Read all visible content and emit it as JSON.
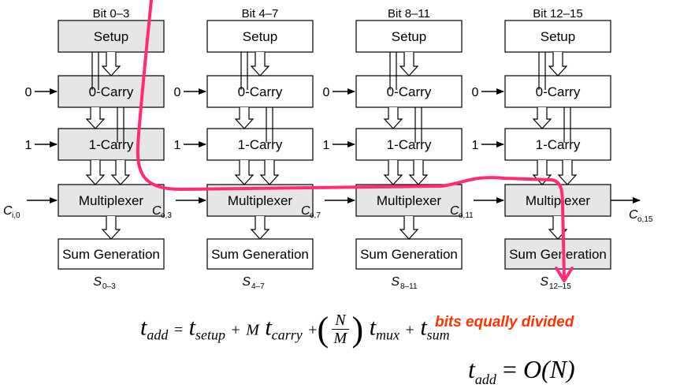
{
  "stages": [
    {
      "header": "Bit 0–3",
      "carry_in": "C",
      "carry_in_sub": "i,0",
      "sum_label": "S",
      "sum_sub": "0–3",
      "shaded": true
    },
    {
      "header": "Bit 4–7",
      "carry_in": "C",
      "carry_in_sub": "o,3",
      "sum_label": "S",
      "sum_sub": "4–7",
      "shaded": false
    },
    {
      "header": "Bit 8–11",
      "carry_in": "C",
      "carry_in_sub": "o,7",
      "sum_label": "S",
      "sum_sub": "8–11",
      "shaded": false
    },
    {
      "header": "Bit 12–15",
      "carry_in": "C",
      "carry_in_sub": "o,11",
      "sum_label": "S",
      "sum_sub": "12–15",
      "shaded": false
    }
  ],
  "final_carry": {
    "label": "C",
    "sub": "o,15"
  },
  "blocks": {
    "setup": "Setup",
    "carry0": "0-Carry",
    "carry1": "1-Carry",
    "mux": "Multiplexer",
    "sum": "Sum Generation"
  },
  "inputs": {
    "zero": "0",
    "one": "1"
  },
  "colors": {
    "shaded": "#e6e6e6",
    "plain": "#ffffff",
    "critical_path": "#ff2b79",
    "note": "#ff3300"
  },
  "formula": {
    "lhs": "t",
    "lhs_sub": "add",
    "t1": "t",
    "t1_sub": "setup",
    "m": "M",
    "t2": "t",
    "t2_sub": "carry",
    "frac_num": "N",
    "frac_den": "M",
    "t3": "t",
    "t3_sub": "mux",
    "t4": "t",
    "t4_sub": "sum"
  },
  "note": "bits equally divided",
  "complexity": {
    "lhs": "t",
    "lhs_sub": "add",
    "rhs": "O(N)"
  }
}
